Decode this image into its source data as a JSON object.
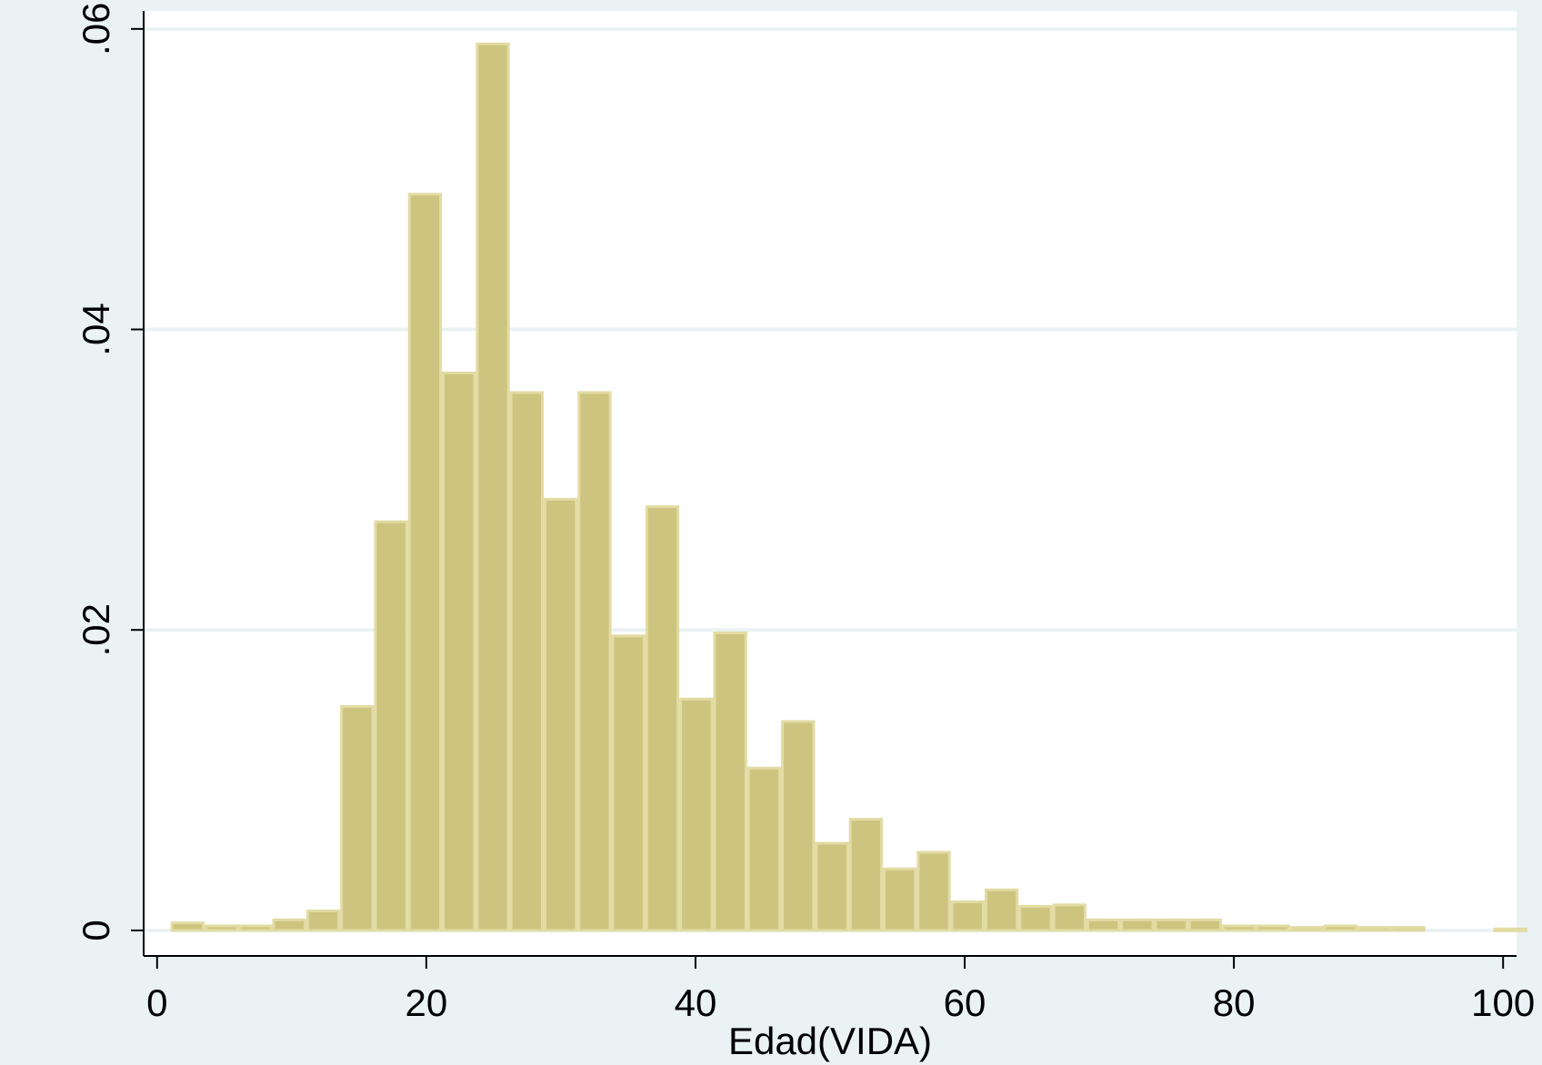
{
  "chart_data": {
    "type": "bar",
    "title": "",
    "xlabel": "Edad(VIDA)",
    "ylabel": "",
    "xlim": [
      -1,
      101
    ],
    "ylim": [
      -0.0017,
      0.0612
    ],
    "x_ticks": [
      {
        "value": 0,
        "label": "0"
      },
      {
        "value": 20,
        "label": "20"
      },
      {
        "value": 40,
        "label": "40"
      },
      {
        "value": 60,
        "label": "60"
      },
      {
        "value": 80,
        "label": "80"
      },
      {
        "value": 100,
        "label": "100"
      }
    ],
    "y_ticks": [
      {
        "value": 0,
        "label": "0"
      },
      {
        "value": 0.02,
        "label": ".02"
      },
      {
        "value": 0.04,
        "label": ".04"
      },
      {
        "value": 0.06,
        "label": ".06"
      }
    ],
    "grid": true,
    "bin_width": 2.52,
    "bin_start": 1,
    "values": [
      0.0005,
      0.0003,
      0.0003,
      0.0007,
      0.0013,
      0.0149,
      0.0272,
      0.049,
      0.0371,
      0.059,
      0.0358,
      0.0287,
      0.0358,
      0.0196,
      0.0282,
      0.0154,
      0.0198,
      0.0108,
      0.0139,
      0.0058,
      0.0074,
      0.0041,
      0.0052,
      0.0019,
      0.0027,
      0.0016,
      0.0017,
      0.0007,
      0.0007,
      0.0007,
      0.0007,
      0.0003,
      0.0003,
      0.0002,
      0.0003,
      0.0002,
      0.0002,
      0,
      0,
      0.0001
    ],
    "colors": {
      "background": "#eaf2f3",
      "plot_area": "#ffffff",
      "bar_fill": "#cdc47f",
      "bar_edge": "#e2dba3",
      "grid": "#eaf2f3",
      "axis": "#000000"
    }
  }
}
